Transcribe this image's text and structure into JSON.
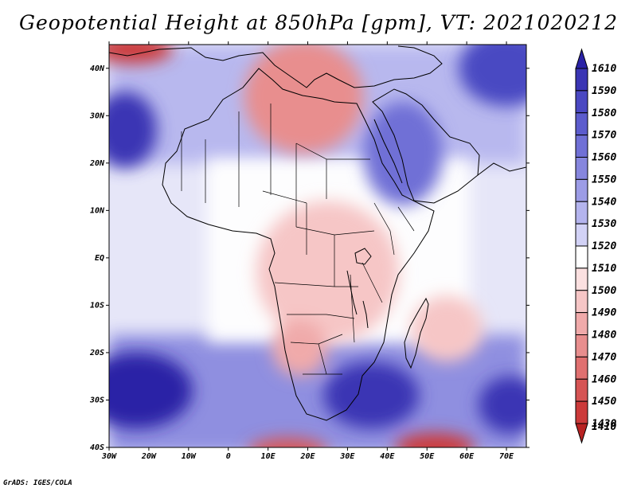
{
  "title": "Geopotential Height at 850hPa [gpm], VT: 2021020212",
  "credit": "GrADS: IGES/COLA",
  "map": {
    "lon_range": [
      -30,
      75
    ],
    "lat_range": [
      -40,
      45
    ],
    "lat_ticks": [
      {
        "lat": 40,
        "label": "40N"
      },
      {
        "lat": 30,
        "label": "30N"
      },
      {
        "lat": 20,
        "label": "20N"
      },
      {
        "lat": 10,
        "label": "10N"
      },
      {
        "lat": 0,
        "label": "EQ"
      },
      {
        "lat": -10,
        "label": "10S"
      },
      {
        "lat": -20,
        "label": "20S"
      },
      {
        "lat": -30,
        "label": "30S"
      },
      {
        "lat": -40,
        "label": "40S"
      }
    ],
    "lon_ticks": [
      {
        "lon": -30,
        "label": "30W"
      },
      {
        "lon": -20,
        "label": "20W"
      },
      {
        "lon": -10,
        "label": "10W"
      },
      {
        "lon": 0,
        "label": "0"
      },
      {
        "lon": 10,
        "label": "10E"
      },
      {
        "lon": 20,
        "label": "20E"
      },
      {
        "lon": 30,
        "label": "30E"
      },
      {
        "lon": 40,
        "label": "40E"
      },
      {
        "lon": 50,
        "label": "50E"
      },
      {
        "lon": 60,
        "label": "60E"
      },
      {
        "lon": 70,
        "label": "70E"
      }
    ]
  },
  "colorbar": {
    "levels": [
      {
        "label": "1610",
        "color": "#2a22a6"
      },
      {
        "label": "1590",
        "color": "#3a35b4"
      },
      {
        "label": "1580",
        "color": "#4a48c2"
      },
      {
        "label": "1570",
        "color": "#5c5ccd"
      },
      {
        "label": "1560",
        "color": "#7070d6"
      },
      {
        "label": "1550",
        "color": "#8686de"
      },
      {
        "label": "1540",
        "color": "#9c9ce6"
      },
      {
        "label": "1530",
        "color": "#b4b4ee"
      },
      {
        "label": "1520",
        "color": "#d2d2f6"
      },
      {
        "label": "1510",
        "color": "#ffffff"
      },
      {
        "label": "1500",
        "color": "#fbe0e0"
      },
      {
        "label": "1490",
        "color": "#f6c6c6"
      },
      {
        "label": "1480",
        "color": "#f0aaaa"
      },
      {
        "label": "1470",
        "color": "#e88e8e"
      },
      {
        "label": "1460",
        "color": "#e07070"
      },
      {
        "label": "1450",
        "color": "#d65454"
      },
      {
        "label": "1430",
        "color": "#cc3a3a"
      },
      {
        "label": "1410",
        "color": "#b82222"
      }
    ]
  },
  "field_blobs": [
    {
      "name": "n-africa-ridge",
      "lon": 19,
      "lat": 37,
      "rx": 11,
      "ry": 8,
      "color": "#c0302f"
    },
    {
      "name": "n-africa-ridge-outer",
      "lon": 19,
      "lat": 34,
      "rx": 15,
      "ry": 12,
      "color": "#e88e8e"
    },
    {
      "name": "nw-corner-red",
      "lon": -24,
      "lat": 44,
      "rx": 10,
      "ry": 3,
      "color": "#cc3a3a"
    },
    {
      "name": "w-sahara-low",
      "lon": -26,
      "lat": 27,
      "rx": 8,
      "ry": 8,
      "color": "#3a35b4"
    },
    {
      "name": "arabia-low",
      "lon": 44,
      "lat": 22,
      "rx": 10,
      "ry": 11,
      "color": "#7070d6"
    },
    {
      "name": "asia-low",
      "lon": 70,
      "lat": 40,
      "rx": 12,
      "ry": 8,
      "color": "#4a48c2"
    },
    {
      "name": "s-atlantic-low",
      "lon": -23,
      "lat": -28,
      "rx": 14,
      "ry": 8,
      "color": "#2a22a6"
    },
    {
      "name": "se-africa-low",
      "lon": 36,
      "lat": -29,
      "rx": 12,
      "ry": 7,
      "color": "#3a35b4"
    },
    {
      "name": "s-indian-low",
      "lon": 71,
      "lat": -31,
      "rx": 8,
      "ry": 6,
      "color": "#3a35b4"
    },
    {
      "name": "central-africa-high",
      "lon": 25,
      "lat": -3,
      "rx": 18,
      "ry": 15,
      "color": "#f6c6c6"
    },
    {
      "name": "angola-high",
      "lon": 18,
      "lat": -19,
      "rx": 7,
      "ry": 6,
      "color": "#f0aaaa"
    },
    {
      "name": "madagascar-high",
      "lon": 55,
      "lat": -15,
      "rx": 9,
      "ry": 7,
      "color": "#f6c6c6"
    },
    {
      "name": "s-tip-high",
      "lon": 52,
      "lat": -40,
      "rx": 10,
      "ry": 3,
      "color": "#cc3a3a"
    },
    {
      "name": "sw-tip-high",
      "lon": 15,
      "lat": -41,
      "rx": 10,
      "ry": 3,
      "color": "#d65454"
    }
  ]
}
